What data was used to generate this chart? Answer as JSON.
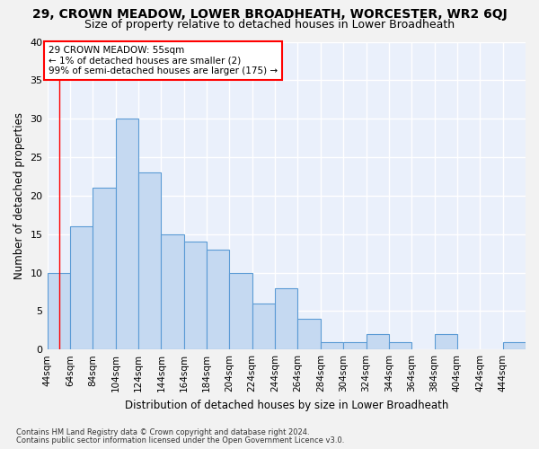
{
  "title": "29, CROWN MEADOW, LOWER BROADHEATH, WORCESTER, WR2 6QJ",
  "subtitle": "Size of property relative to detached houses in Lower Broadheath",
  "xlabel": "Distribution of detached houses by size in Lower Broadheath",
  "ylabel": "Number of detached properties",
  "footnote1": "Contains HM Land Registry data © Crown copyright and database right 2024.",
  "footnote2": "Contains public sector information licensed under the Open Government Licence v3.0.",
  "bar_labels": [
    "44sqm",
    "64sqm",
    "84sqm",
    "104sqm",
    "124sqm",
    "144sqm",
    "164sqm",
    "184sqm",
    "204sqm",
    "224sqm",
    "244sqm",
    "264sqm",
    "284sqm",
    "304sqm",
    "324sqm",
    "344sqm",
    "364sqm",
    "384sqm",
    "404sqm",
    "424sqm",
    "444sqm"
  ],
  "bar_values": [
    10,
    16,
    21,
    30,
    23,
    15,
    14,
    13,
    10,
    6,
    8,
    4,
    1,
    1,
    2,
    1,
    0,
    2,
    0,
    0,
    1
  ],
  "bar_color": "#c5d9f1",
  "bar_edge_color": "#5b9bd5",
  "ylim": [
    0,
    40
  ],
  "yticks": [
    0,
    5,
    10,
    15,
    20,
    25,
    30,
    35,
    40
  ],
  "annotation_text": "29 CROWN MEADOW: 55sqm\n← 1% of detached houses are smaller (2)\n99% of semi-detached houses are larger (175) →",
  "annotation_box_color": "#ffffff",
  "annotation_box_edge": "#ff0000",
  "vline_x": 55,
  "vline_color": "#ff0000",
  "bg_color": "#eaf0fb",
  "grid_color": "#ffffff",
  "fig_bg_color": "#f2f2f2",
  "title_fontsize": 10,
  "subtitle_fontsize": 9
}
